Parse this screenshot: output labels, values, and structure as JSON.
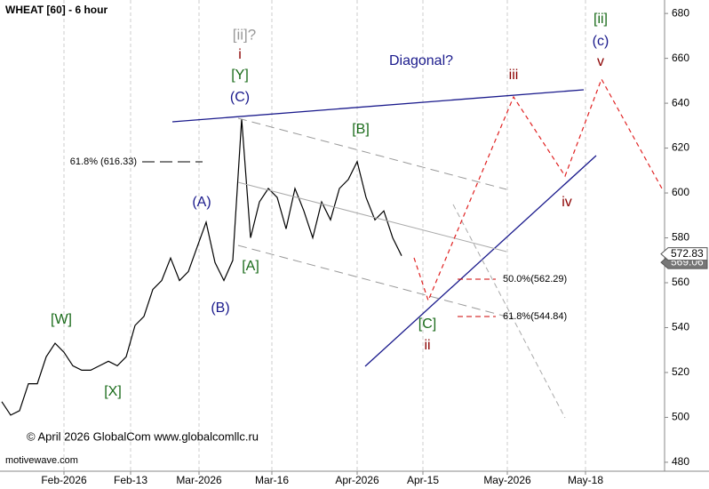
{
  "chart_data": {
    "type": "line",
    "title": "WHEAT [60] - 6 hour",
    "values": [
      507,
      501,
      503,
      515,
      515,
      527,
      533,
      529,
      523,
      521,
      521,
      523,
      525,
      523,
      527,
      541,
      545,
      557,
      561,
      571,
      561,
      565,
      576,
      587,
      569,
      561,
      570,
      633,
      580,
      596,
      602,
      598,
      584,
      602,
      592,
      580,
      596,
      588,
      602,
      606,
      614,
      598,
      588,
      592,
      580,
      572
    ],
    "color": "#000000",
    "ylim": [
      476,
      686
    ],
    "yticks": [
      480,
      500,
      520,
      540,
      560,
      580,
      600,
      620,
      640,
      660,
      680
    ],
    "xticks": [
      "Feb-2026",
      "Feb-13",
      "Mar-2026",
      "Mar-16",
      "Apr-2026",
      "Apr-15",
      "May-2026",
      "May-18"
    ],
    "grid": true,
    "last_price": 572.83,
    "bid_price": 569.06,
    "annotations": [
      "[ii]?",
      "i",
      "[Y]",
      "(C)",
      "Diagonal?",
      "[B]",
      "iii",
      "[ii]",
      "(c)",
      "v",
      "(A)",
      "(B)",
      "[A]",
      "[W]",
      "[X]",
      "[C]",
      "ii",
      "iv",
      "61.8% (616.33)",
      "50.0%(562.29)",
      "61.8%(544.84)",
      "© April 2026 GlobalCom www.globalcomllc.ru",
      "motivewave.com"
    ]
  }
}
